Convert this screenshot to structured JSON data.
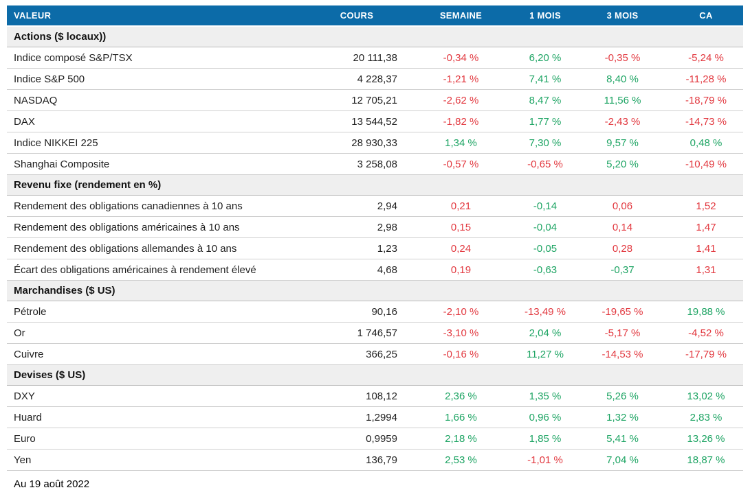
{
  "meta": {
    "as_of": "Au 19 août 2022"
  },
  "colors": {
    "header_bg": "#0c6ba8",
    "header_text": "#ffffff",
    "section_bg": "#efefef",
    "negative": "#e2383f",
    "positive": "#1da463",
    "row_divider": "#cfcfcf"
  },
  "table": {
    "columns": [
      "VALEUR",
      "COURS",
      "SEMAINE",
      "1 MOIS",
      "3 MOIS",
      "CA"
    ],
    "sections": [
      {
        "title": "Actions ($ locaux))",
        "rows": [
          {
            "label": "Indice composé S&P/TSX",
            "cours": "20 111,38",
            "chg": [
              {
                "v": "-0,34 %",
                "s": "neg"
              },
              {
                "v": "6,20 %",
                "s": "pos"
              },
              {
                "v": "-0,35 %",
                "s": "neg"
              },
              {
                "v": "-5,24 %",
                "s": "neg"
              }
            ]
          },
          {
            "label": "Indice S&P 500",
            "cours": "4 228,37",
            "chg": [
              {
                "v": "-1,21 %",
                "s": "neg"
              },
              {
                "v": "7,41 %",
                "s": "pos"
              },
              {
                "v": "8,40 %",
                "s": "pos"
              },
              {
                "v": "-11,28 %",
                "s": "neg"
              }
            ]
          },
          {
            "label": "NASDAQ",
            "cours": "12 705,21",
            "chg": [
              {
                "v": "-2,62 %",
                "s": "neg"
              },
              {
                "v": "8,47 %",
                "s": "pos"
              },
              {
                "v": "11,56 %",
                "s": "pos"
              },
              {
                "v": "-18,79 %",
                "s": "neg"
              }
            ]
          },
          {
            "label": "DAX",
            "cours": "13 544,52",
            "chg": [
              {
                "v": "-1,82 %",
                "s": "neg"
              },
              {
                "v": "1,77 %",
                "s": "pos"
              },
              {
                "v": "-2,43 %",
                "s": "neg"
              },
              {
                "v": "-14,73 %",
                "s": "neg"
              }
            ]
          },
          {
            "label": "Indice NIKKEI 225",
            "cours": "28 930,33",
            "chg": [
              {
                "v": "1,34 %",
                "s": "pos"
              },
              {
                "v": "7,30 %",
                "s": "pos"
              },
              {
                "v": "9,57 %",
                "s": "pos"
              },
              {
                "v": "0,48 %",
                "s": "pos"
              }
            ]
          },
          {
            "label": "Shanghai Composite",
            "cours": "3 258,08",
            "chg": [
              {
                "v": "-0,57 %",
                "s": "neg"
              },
              {
                "v": "-0,65 %",
                "s": "neg"
              },
              {
                "v": "5,20 %",
                "s": "pos"
              },
              {
                "v": "-10,49 %",
                "s": "neg"
              }
            ]
          }
        ]
      },
      {
        "title": "Revenu fixe (rendement en %)",
        "rows": [
          {
            "label": "Rendement des obligations canadiennes à 10 ans",
            "cours": "2,94",
            "chg": [
              {
                "v": "0,21",
                "s": "neg"
              },
              {
                "v": "-0,14",
                "s": "pos"
              },
              {
                "v": "0,06",
                "s": "neg"
              },
              {
                "v": "1,52",
                "s": "neg"
              }
            ]
          },
          {
            "label": "Rendement des obligations américaines à 10 ans",
            "cours": "2,98",
            "chg": [
              {
                "v": "0,15",
                "s": "neg"
              },
              {
                "v": "-0,04",
                "s": "pos"
              },
              {
                "v": "0,14",
                "s": "neg"
              },
              {
                "v": "1,47",
                "s": "neg"
              }
            ]
          },
          {
            "label": "Rendement des obligations allemandes à 10 ans",
            "cours": "1,23",
            "chg": [
              {
                "v": "0,24",
                "s": "neg"
              },
              {
                "v": "-0,05",
                "s": "pos"
              },
              {
                "v": "0,28",
                "s": "neg"
              },
              {
                "v": "1,41",
                "s": "neg"
              }
            ]
          },
          {
            "label": "Écart des obligations américaines à rendement élevé",
            "cours": "4,68",
            "chg": [
              {
                "v": "0,19",
                "s": "neg"
              },
              {
                "v": "-0,63",
                "s": "pos"
              },
              {
                "v": "-0,37",
                "s": "pos"
              },
              {
                "v": "1,31",
                "s": "neg"
              }
            ]
          }
        ]
      },
      {
        "title": "Marchandises ($ US)",
        "rows": [
          {
            "label": "Pétrole",
            "cours": "90,16",
            "chg": [
              {
                "v": "-2,10 %",
                "s": "neg"
              },
              {
                "v": "-13,49 %",
                "s": "neg"
              },
              {
                "v": "-19,65 %",
                "s": "neg"
              },
              {
                "v": "19,88 %",
                "s": "pos"
              }
            ]
          },
          {
            "label": "Or",
            "cours": "1 746,57",
            "chg": [
              {
                "v": "-3,10 %",
                "s": "neg"
              },
              {
                "v": "2,04 %",
                "s": "pos"
              },
              {
                "v": "-5,17 %",
                "s": "neg"
              },
              {
                "v": "-4,52 %",
                "s": "neg"
              }
            ]
          },
          {
            "label": "Cuivre",
            "cours": "366,25",
            "chg": [
              {
                "v": "-0,16 %",
                "s": "neg"
              },
              {
                "v": "11,27 %",
                "s": "pos"
              },
              {
                "v": "-14,53 %",
                "s": "neg"
              },
              {
                "v": "-17,79 %",
                "s": "neg"
              }
            ]
          }
        ]
      },
      {
        "title": "Devises ($ US)",
        "rows": [
          {
            "label": "DXY",
            "cours": "108,12",
            "chg": [
              {
                "v": "2,36 %",
                "s": "pos"
              },
              {
                "v": "1,35 %",
                "s": "pos"
              },
              {
                "v": "5,26 %",
                "s": "pos"
              },
              {
                "v": "13,02 %",
                "s": "pos"
              }
            ]
          },
          {
            "label": "Huard",
            "cours": "1,2994",
            "chg": [
              {
                "v": "1,66 %",
                "s": "pos"
              },
              {
                "v": "0,96 %",
                "s": "pos"
              },
              {
                "v": "1,32 %",
                "s": "pos"
              },
              {
                "v": "2,83 %",
                "s": "pos"
              }
            ]
          },
          {
            "label": "Euro",
            "cours": "0,9959",
            "chg": [
              {
                "v": "2,18 %",
                "s": "pos"
              },
              {
                "v": "1,85 %",
                "s": "pos"
              },
              {
                "v": "5,41 %",
                "s": "pos"
              },
              {
                "v": "13,26 %",
                "s": "pos"
              }
            ]
          },
          {
            "label": "Yen",
            "cours": "136,79",
            "chg": [
              {
                "v": "2,53 %",
                "s": "pos"
              },
              {
                "v": "-1,01 %",
                "s": "neg"
              },
              {
                "v": "7,04 %",
                "s": "pos"
              },
              {
                "v": "18,87 %",
                "s": "pos"
              }
            ]
          }
        ]
      }
    ]
  },
  "chart_data": {
    "type": "table",
    "title": "",
    "columns": [
      "VALEUR",
      "COURS",
      "SEMAINE",
      "1 MOIS",
      "3 MOIS",
      "CA"
    ],
    "as_of": "Au 19 août 2022",
    "sections": [
      {
        "section": "Actions ($ locaux))",
        "rows": [
          {
            "valeur": "Indice composé S&P/TSX",
            "cours": 20111.38,
            "semaine": -0.34,
            "mois_1": 6.2,
            "mois_3": -0.35,
            "ca": -5.24
          },
          {
            "valeur": "Indice S&P 500",
            "cours": 4228.37,
            "semaine": -1.21,
            "mois_1": 7.41,
            "mois_3": 8.4,
            "ca": -11.28
          },
          {
            "valeur": "NASDAQ",
            "cours": 12705.21,
            "semaine": -2.62,
            "mois_1": 8.47,
            "mois_3": 11.56,
            "ca": -18.79
          },
          {
            "valeur": "DAX",
            "cours": 13544.52,
            "semaine": -1.82,
            "mois_1": 1.77,
            "mois_3": -2.43,
            "ca": -14.73
          },
          {
            "valeur": "Indice NIKKEI 225",
            "cours": 28930.33,
            "semaine": 1.34,
            "mois_1": 7.3,
            "mois_3": 9.57,
            "ca": 0.48
          },
          {
            "valeur": "Shanghai Composite",
            "cours": 3258.08,
            "semaine": -0.57,
            "mois_1": -0.65,
            "mois_3": 5.2,
            "ca": -10.49
          }
        ]
      },
      {
        "section": "Revenu fixe (rendement en %)",
        "rows": [
          {
            "valeur": "Rendement des obligations canadiennes à 10 ans",
            "cours": 2.94,
            "semaine": 0.21,
            "mois_1": -0.14,
            "mois_3": 0.06,
            "ca": 1.52
          },
          {
            "valeur": "Rendement des obligations américaines à 10 ans",
            "cours": 2.98,
            "semaine": 0.15,
            "mois_1": -0.04,
            "mois_3": 0.14,
            "ca": 1.47
          },
          {
            "valeur": "Rendement des obligations allemandes à 10 ans",
            "cours": 1.23,
            "semaine": 0.24,
            "mois_1": -0.05,
            "mois_3": 0.28,
            "ca": 1.41
          },
          {
            "valeur": "Écart des obligations américaines à rendement élevé",
            "cours": 4.68,
            "semaine": 0.19,
            "mois_1": -0.63,
            "mois_3": -0.37,
            "ca": 1.31
          }
        ]
      },
      {
        "section": "Marchandises ($ US)",
        "rows": [
          {
            "valeur": "Pétrole",
            "cours": 90.16,
            "semaine": -2.1,
            "mois_1": -13.49,
            "mois_3": -19.65,
            "ca": 19.88
          },
          {
            "valeur": "Or",
            "cours": 1746.57,
            "semaine": -3.1,
            "mois_1": 2.04,
            "mois_3": -5.17,
            "ca": -4.52
          },
          {
            "valeur": "Cuivre",
            "cours": 366.25,
            "semaine": -0.16,
            "mois_1": 11.27,
            "mois_3": -14.53,
            "ca": -17.79
          }
        ]
      },
      {
        "section": "Devises ($ US)",
        "rows": [
          {
            "valeur": "DXY",
            "cours": 108.12,
            "semaine": 2.36,
            "mois_1": 1.35,
            "mois_3": 5.26,
            "ca": 13.02
          },
          {
            "valeur": "Huard",
            "cours": 1.2994,
            "semaine": 1.66,
            "mois_1": 0.96,
            "mois_3": 1.32,
            "ca": 2.83
          },
          {
            "valeur": "Euro",
            "cours": 0.9959,
            "semaine": 2.18,
            "mois_1": 1.85,
            "mois_3": 5.41,
            "ca": 13.26
          },
          {
            "valeur": "Yen",
            "cours": 136.79,
            "semaine": 2.53,
            "mois_1": -1.01,
            "mois_3": 7.04,
            "ca": 18.87
          }
        ]
      }
    ]
  }
}
